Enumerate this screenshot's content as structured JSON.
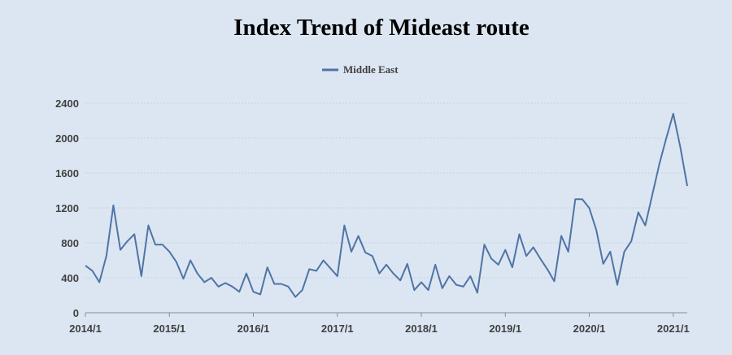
{
  "chart_data": {
    "type": "line",
    "title": "Index Trend of Mideast route",
    "xlabel": "",
    "ylabel": "",
    "legend_position": "top-center",
    "grid": true,
    "ylim": [
      0,
      2400
    ],
    "y_ticks": [
      0,
      400,
      800,
      1200,
      1600,
      2000,
      2400
    ],
    "x_ticks": [
      "2014/1",
      "2015/1",
      "2016/1",
      "2017/1",
      "2018/1",
      "2019/1",
      "2020/1",
      "2021/1"
    ],
    "xlim": [
      "2014/1",
      "2021/3"
    ],
    "series": [
      {
        "name": "Middle East",
        "color": "#4f74a6",
        "x": [
          "2014/1",
          "2014/2",
          "2014/3",
          "2014/4",
          "2014/5",
          "2014/6",
          "2014/7",
          "2014/8",
          "2014/9",
          "2014/10",
          "2014/11",
          "2014/12",
          "2015/1",
          "2015/2",
          "2015/3",
          "2015/4",
          "2015/5",
          "2015/6",
          "2015/7",
          "2015/8",
          "2015/9",
          "2015/10",
          "2015/11",
          "2015/12",
          "2016/1",
          "2016/2",
          "2016/3",
          "2016/4",
          "2016/5",
          "2016/6",
          "2016/7",
          "2016/8",
          "2016/9",
          "2016/10",
          "2016/11",
          "2016/12",
          "2017/1",
          "2017/2",
          "2017/3",
          "2017/4",
          "2017/5",
          "2017/6",
          "2017/7",
          "2017/8",
          "2017/9",
          "2017/10",
          "2017/11",
          "2017/12",
          "2018/1",
          "2018/2",
          "2018/3",
          "2018/4",
          "2018/5",
          "2018/6",
          "2018/7",
          "2018/8",
          "2018/9",
          "2018/10",
          "2018/11",
          "2018/12",
          "2019/1",
          "2019/2",
          "2019/3",
          "2019/4",
          "2019/5",
          "2019/6",
          "2019/7",
          "2019/8",
          "2019/9",
          "2019/10",
          "2019/11",
          "2019/12",
          "2020/1",
          "2020/2",
          "2020/3",
          "2020/4",
          "2020/5",
          "2020/6",
          "2020/7",
          "2020/8",
          "2020/9",
          "2020/10",
          "2020/11",
          "2020/12",
          "2021/1",
          "2021/2",
          "2021/3"
        ],
        "values": [
          540,
          480,
          350,
          650,
          1230,
          720,
          820,
          900,
          420,
          1000,
          780,
          780,
          700,
          580,
          390,
          600,
          450,
          350,
          400,
          300,
          340,
          300,
          240,
          450,
          240,
          210,
          520,
          330,
          330,
          300,
          180,
          260,
          500,
          480,
          600,
          510,
          420,
          1000,
          700,
          880,
          690,
          650,
          450,
          550,
          450,
          370,
          560,
          260,
          350,
          260,
          550,
          280,
          420,
          320,
          300,
          420,
          230,
          780,
          620,
          550,
          720,
          520,
          900,
          650,
          750,
          620,
          500,
          360,
          880,
          700,
          1300,
          1300,
          1200,
          950,
          560,
          700,
          320,
          700,
          820,
          1150,
          1000,
          1350,
          1700,
          2000,
          2280,
          1900,
          1450
        ]
      }
    ]
  }
}
